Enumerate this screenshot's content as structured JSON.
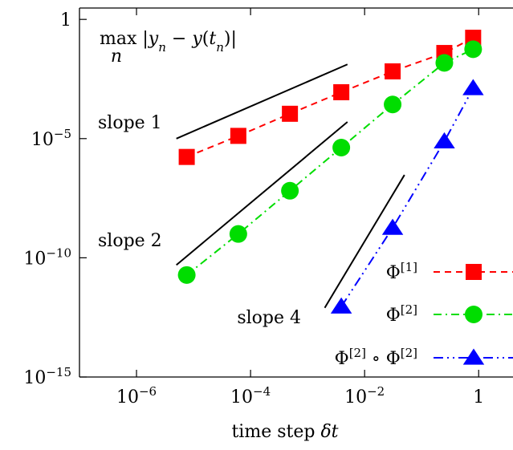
{
  "chart_data": {
    "type": "line",
    "xscale": "log",
    "yscale": "log",
    "xlim": [
      1e-07,
      4
    ],
    "ylim": [
      1e-15,
      3
    ],
    "xlabel": "time step δt",
    "ylabel": "",
    "x_ticks": [
      {
        "value": 1e-06,
        "base": "10",
        "exp": "−6"
      },
      {
        "value": 0.0001,
        "base": "10",
        "exp": "−4"
      },
      {
        "value": 0.01,
        "base": "10",
        "exp": "−2"
      },
      {
        "value": 1,
        "base": "1",
        "exp": ""
      }
    ],
    "y_ticks": [
      {
        "value": 1,
        "base": "1",
        "exp": ""
      },
      {
        "value": 1e-05,
        "base": "10",
        "exp": "−5"
      },
      {
        "value": 1e-10,
        "base": "10",
        "exp": "−10"
      },
      {
        "value": 1e-15,
        "base": "10",
        "exp": "−15"
      }
    ],
    "plot_label": "max_n |y_n − y(t_n)|",
    "series": [
      {
        "name": "Φ[1]",
        "color": "#ff0000",
        "marker": "square",
        "dash": "dashed",
        "x": [
          7.6e-06,
          6.1e-05,
          0.00049,
          0.0039,
          0.031,
          0.25,
          0.8
        ],
        "y": [
          1.7e-06,
          1.3e-05,
          0.00011,
          0.00088,
          0.0066,
          0.039,
          0.17
        ]
      },
      {
        "name": "Φ[2]",
        "color": "#00dd00",
        "marker": "circle",
        "dash": "dashdot",
        "x": [
          7.6e-06,
          6.1e-05,
          0.00049,
          0.0039,
          0.031,
          0.25,
          0.8
        ],
        "y": [
          1.9e-11,
          1e-09,
          6.5e-08,
          4.2e-06,
          0.00027,
          0.015,
          0.056
        ]
      },
      {
        "name": "Φ[2] ∘ Φ[2]",
        "color": "#0000ff",
        "marker": "triangle",
        "dash": "dashdotdot",
        "x": [
          0.0039,
          0.031,
          0.25,
          0.8
        ],
        "y": [
          9e-13,
          1.8e-09,
          7.6e-06,
          0.0013
        ]
      }
    ],
    "reference_lines": [
      {
        "label": "slope 1",
        "x": [
          5e-06,
          0.005
        ],
        "y": [
          1e-05,
          0.013
        ]
      },
      {
        "label": "slope 2",
        "x": [
          5e-06,
          0.005
        ],
        "y": [
          5e-11,
          5e-05
        ]
      },
      {
        "label": "slope 4",
        "x": [
          0.002,
          0.05
        ],
        "y": [
          8e-13,
          3e-07
        ]
      }
    ]
  }
}
